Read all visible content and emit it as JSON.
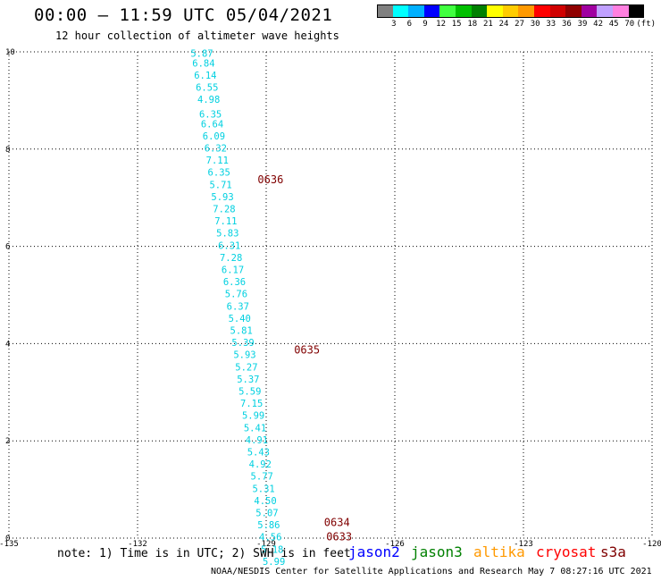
{
  "header": {
    "title": "00:00 – 11:59 UTC 05/04/2021",
    "subtitle": "12 hour collection of altimeter wave heights"
  },
  "colorbar": {
    "bins": [
      {
        "color": "#808080",
        "label": "3"
      },
      {
        "color": "#00ffff",
        "label": "6"
      },
      {
        "color": "#00b0ff",
        "label": "9"
      },
      {
        "color": "#0000ff",
        "label": "12"
      },
      {
        "color": "#40ff40",
        "label": "15"
      },
      {
        "color": "#00c000",
        "label": "18"
      },
      {
        "color": "#008000",
        "label": "21"
      },
      {
        "color": "#ffff00",
        "label": "24"
      },
      {
        "color": "#ffcc00",
        "label": "27"
      },
      {
        "color": "#ff9900",
        "label": "30"
      },
      {
        "color": "#ff0000",
        "label": "33"
      },
      {
        "color": "#d00000",
        "label": "36"
      },
      {
        "color": "#900000",
        "label": "39"
      },
      {
        "color": "#a000a0",
        "label": "42"
      },
      {
        "color": "#c0a0ff",
        "label": "45"
      },
      {
        "color": "#ff80e0",
        "label": "70"
      },
      {
        "color": "#000000",
        "label": "(ft)"
      }
    ]
  },
  "footer": {
    "note": "note: 1) Time is in UTC; 2) SWH is in feet",
    "credit": "NOAA/NESDIS Center for Satellite Applications and Research   May  7 08:27:16 UTC 2021",
    "satellites": [
      {
        "name": "jason2",
        "color": "#0000ff"
      },
      {
        "name": "jason3",
        "color": "#008000"
      },
      {
        "name": "altika",
        "color": "#ff9900"
      },
      {
        "name": "cryosat",
        "color": "#ff0000"
      },
      {
        "name": "s3a",
        "color": "#800000"
      }
    ]
  },
  "chart_data": {
    "type": "scatter",
    "title": "00:00 – 11:59 UTC 05/04/2021",
    "subtitle": "12 hour collection of altimeter wave heights",
    "xlim": [
      -135,
      -120
    ],
    "ylim": [
      0,
      10
    ],
    "x_ticks": [
      "-135",
      "-132",
      "-129",
      "-126",
      "-123",
      "-120"
    ],
    "y_ticks": [
      "0",
      "2",
      "4",
      "6",
      "8",
      "10"
    ],
    "grid": true,
    "grid_style": "dotted",
    "series": [
      {
        "name": "s3a",
        "color": "#00d0e0",
        "points": [
          {
            "lon": -130.5,
            "lat": 9.9,
            "swh": "5.87"
          },
          {
            "lon": -130.46,
            "lat": 9.7,
            "swh": "6.84"
          },
          {
            "lon": -130.42,
            "lat": 9.45,
            "swh": "6.14"
          },
          {
            "lon": -130.38,
            "lat": 9.2,
            "swh": "6.55"
          },
          {
            "lon": -130.34,
            "lat": 8.95,
            "swh": "4.98"
          },
          {
            "lon": -130.3,
            "lat": 8.65,
            "swh": "6.35"
          },
          {
            "lon": -130.26,
            "lat": 8.45,
            "swh": "6.64"
          },
          {
            "lon": -130.22,
            "lat": 8.2,
            "swh": "6.09"
          },
          {
            "lon": -130.18,
            "lat": 7.95,
            "swh": "6.32"
          },
          {
            "lon": -130.14,
            "lat": 7.7,
            "swh": "7.11"
          },
          {
            "lon": -130.1,
            "lat": 7.45,
            "swh": "6.35"
          },
          {
            "lon": -130.06,
            "lat": 7.2,
            "swh": "5.71"
          },
          {
            "lon": -130.02,
            "lat": 6.95,
            "swh": "5.93"
          },
          {
            "lon": -129.98,
            "lat": 6.7,
            "swh": "7.28"
          },
          {
            "lon": -129.94,
            "lat": 6.45,
            "swh": "7.11"
          },
          {
            "lon": -129.9,
            "lat": 6.2,
            "swh": "5.83"
          },
          {
            "lon": -129.86,
            "lat": 5.95,
            "swh": "6.31"
          },
          {
            "lon": -129.82,
            "lat": 5.7,
            "swh": "7.28"
          },
          {
            "lon": -129.78,
            "lat": 5.45,
            "swh": "6.17"
          },
          {
            "lon": -129.74,
            "lat": 5.2,
            "swh": "6.36"
          },
          {
            "lon": -129.7,
            "lat": 4.95,
            "swh": "5.76"
          },
          {
            "lon": -129.66,
            "lat": 4.7,
            "swh": "6.37"
          },
          {
            "lon": -129.62,
            "lat": 4.45,
            "swh": "5.40"
          },
          {
            "lon": -129.58,
            "lat": 4.2,
            "swh": "5.81"
          },
          {
            "lon": -129.54,
            "lat": 3.95,
            "swh": "5.39"
          },
          {
            "lon": -129.5,
            "lat": 3.7,
            "swh": "5.93"
          },
          {
            "lon": -129.46,
            "lat": 3.45,
            "swh": "5.27"
          },
          {
            "lon": -129.42,
            "lat": 3.2,
            "swh": "5.37"
          },
          {
            "lon": -129.38,
            "lat": 2.95,
            "swh": "5.59"
          },
          {
            "lon": -129.34,
            "lat": 2.7,
            "swh": "7.15"
          },
          {
            "lon": -129.3,
            "lat": 2.45,
            "swh": "5.99"
          },
          {
            "lon": -129.26,
            "lat": 2.2,
            "swh": "5.41"
          },
          {
            "lon": -129.22,
            "lat": 1.95,
            "swh": "4.91"
          },
          {
            "lon": -129.18,
            "lat": 1.7,
            "swh": "5.43"
          },
          {
            "lon": -129.14,
            "lat": 1.45,
            "swh": "4.92"
          },
          {
            "lon": -129.1,
            "lat": 1.2,
            "swh": "5.77"
          },
          {
            "lon": -129.06,
            "lat": 0.95,
            "swh": "5.31"
          },
          {
            "lon": -129.02,
            "lat": 0.7,
            "swh": "4.50"
          },
          {
            "lon": -128.98,
            "lat": 0.45,
            "swh": "5.07"
          },
          {
            "lon": -128.94,
            "lat": 0.2,
            "swh": "5.86"
          },
          {
            "lon": -128.9,
            "lat": -0.05,
            "swh": "4.56"
          },
          {
            "lon": -128.86,
            "lat": -0.3,
            "swh": "5.18"
          },
          {
            "lon": -128.82,
            "lat": -0.55,
            "swh": "5.99"
          }
        ]
      }
    ],
    "time_labels": [
      {
        "text": "0636",
        "lon": -129.2,
        "lat": 7.3,
        "color": "#800000"
      },
      {
        "text": "0635",
        "lon": -128.35,
        "lat": 3.8,
        "color": "#800000"
      },
      {
        "text": "0634",
        "lon": -127.65,
        "lat": 0.25,
        "color": "#800000"
      },
      {
        "text": "0633",
        "lon": -127.6,
        "lat": -0.05,
        "color": "#800000"
      }
    ]
  }
}
